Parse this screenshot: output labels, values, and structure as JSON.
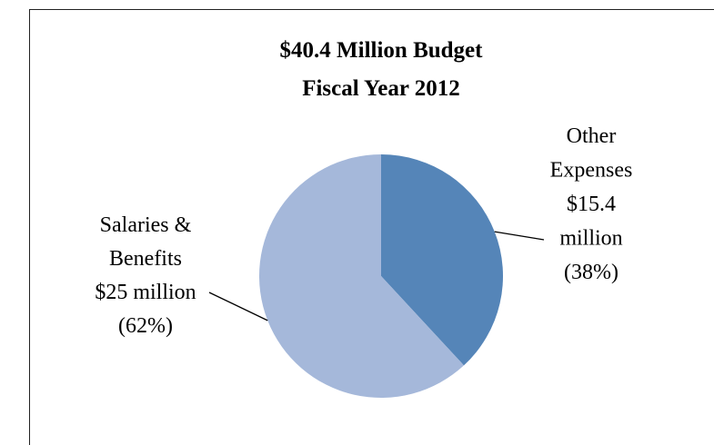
{
  "chart_data": {
    "type": "pie",
    "title": [
      "$40.4 Million Budget",
      "Fiscal Year 2012"
    ],
    "slices": [
      {
        "category": "Other Expenses",
        "value": 15.4,
        "percent": 38,
        "color": "#5585b8",
        "label_lines": [
          "Other",
          "Expenses",
          "$15.4",
          "million",
          "(38%)"
        ]
      },
      {
        "category": "Salaries & Benefits",
        "value": 25,
        "percent": 62,
        "color": "#a5b8da",
        "label_lines": [
          "Salaries &",
          "Benefits",
          "$25 million",
          "(62%)"
        ]
      }
    ],
    "start_angle": "12 o'clock",
    "direction": "clockwise",
    "leader_lines": true,
    "legend": "none"
  }
}
